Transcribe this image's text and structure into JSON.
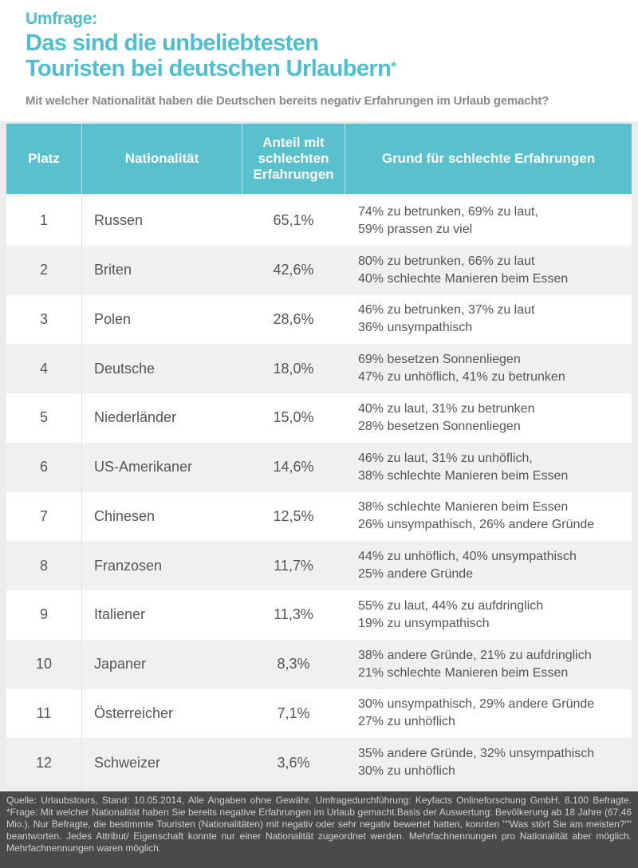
{
  "header": {
    "kicker": "Umfrage:",
    "title_line1": "Das sind die unbeliebtesten",
    "title_line2": "Touristen bei deutschen Urlaubern",
    "title_star": "*",
    "subtitle": "Mit welcher Nationalität haben die Deutschen bereits negativ Erfahrungen im Urlaub gemacht?"
  },
  "table_header": {
    "rank": "Platz",
    "nationality": "Nationalität",
    "share": "Anteil mit schlechten Erfahrungen",
    "reason": "Grund für schlechte Erfahrungen"
  },
  "colors": {
    "accent": "#4fbfcf",
    "header_bg": "#58c1cd",
    "footer_bg": "#4a4a4a"
  },
  "chart_data": {
    "type": "table",
    "columns": [
      "Platz",
      "Nationalität",
      "Anteil mit schlechten Erfahrungen",
      "Grund für schlechte Erfahrungen"
    ],
    "rows": [
      {
        "rank": "1",
        "nationality": "Russen",
        "share": "65,1%",
        "reason1": "74% zu betrunken, 69% zu laut,",
        "reason2": "59% prassen zu viel"
      },
      {
        "rank": "2",
        "nationality": "Briten",
        "share": "42,6%",
        "reason1": "80% zu betrunken, 66% zu laut",
        "reason2": "40% schlechte Manieren beim Essen"
      },
      {
        "rank": "3",
        "nationality": "Polen",
        "share": "28,6%",
        "reason1": "46% zu betrunken, 37% zu laut",
        "reason2": "36% unsympathisch"
      },
      {
        "rank": "4",
        "nationality": "Deutsche",
        "share": "18,0%",
        "reason1": "69% besetzen Sonnenliegen",
        "reason2": "47% zu unhöflich, 41% zu betrunken"
      },
      {
        "rank": "5",
        "nationality": "Niederländer",
        "share": "15,0%",
        "reason1": "40% zu laut, 31% zu betrunken",
        "reason2": "28% besetzen Sonnenliegen"
      },
      {
        "rank": "6",
        "nationality": "US-Amerikaner",
        "share": "14,6%",
        "reason1": "46% zu laut, 31% zu unhöflich,",
        "reason2": "38% schlechte Manieren beim Essen"
      },
      {
        "rank": "7",
        "nationality": "Chinesen",
        "share": "12,5%",
        "reason1": "38% schlechte Manieren beim Essen",
        "reason2": "26% unsympathisch, 26% andere Gründe"
      },
      {
        "rank": "8",
        "nationality": "Franzosen",
        "share": "11,7%",
        "reason1": "44% zu unhöflich, 40% unsympathisch",
        "reason2": "25% andere Gründe"
      },
      {
        "rank": "9",
        "nationality": "Italiener",
        "share": "11,3%",
        "reason1": "55% zu laut, 44% zu aufdringlich",
        "reason2": "19% zu unsympathisch"
      },
      {
        "rank": "10",
        "nationality": "Japaner",
        "share": "8,3%",
        "reason1": "38% andere Gründe, 21% zu aufdringlich",
        "reason2": "21% schlechte Manieren beim Essen"
      },
      {
        "rank": "11",
        "nationality": "Österreicher",
        "share": "7,1%",
        "reason1": "30% unsympathisch, 29% andere Gründe",
        "reason2": "27% zu unhöflich"
      },
      {
        "rank": "12",
        "nationality": "Schweizer",
        "share": "3,6%",
        "reason1": "35% andere Gründe, 32% unsympathisch",
        "reason2": "30% zu unhöflich"
      }
    ]
  },
  "footer": {
    "text": "Quelle: Urlaubstours, Stand: 10.05.2014, Alle Angaben ohne Gewähr. Umfragedurchführung: Keyfacts Onlineforschung GmbH. 8.100 Befragte. *Frage: Mit welcher Nationalität haben Sie bereits negative Erfahrungen im Urlaub gemacht.Basis der Auswertung: Bevölkerung ab 18 Jahre (67,46 Mio.). Nur Befragte, die bestimmte Touristen (Nationalitäten) mit negativ oder sehr negativ bewertet hatten, konnten \"\"Was stört Sie am meisten?\"\" beantworten. Jedes Attribut/ Eigenschaft konnte nur einer Nationalität zugeordnet werden. Mehrfachnennungen pro Nationalität aber möglich. Mehrfachnennungen waren möglich."
  }
}
